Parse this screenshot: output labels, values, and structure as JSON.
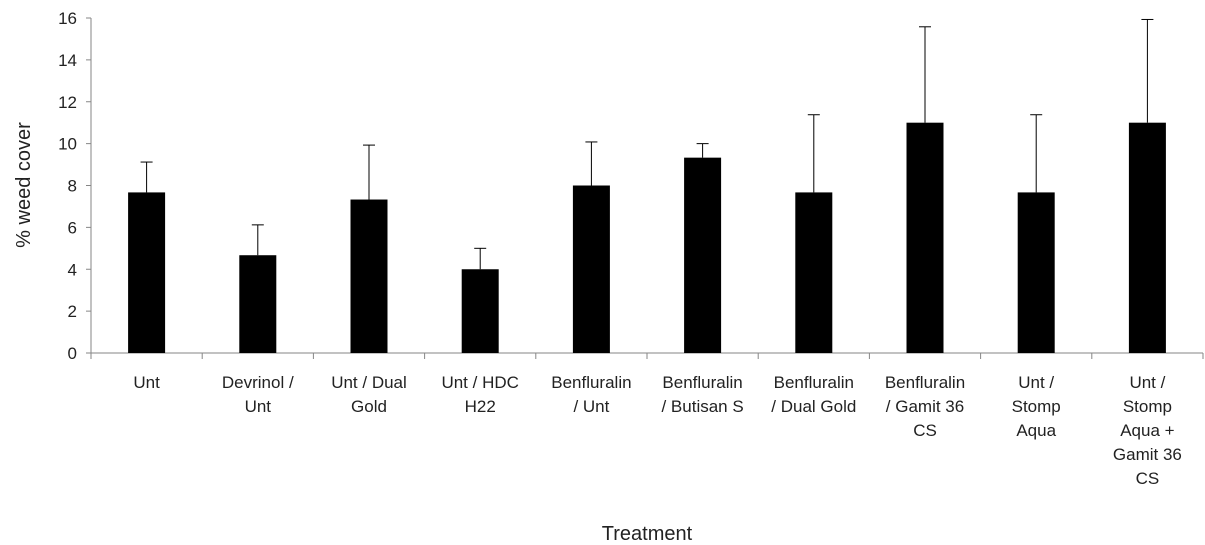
{
  "chart_data": {
    "type": "bar",
    "title": "",
    "xlabel": "Treatment",
    "ylabel": "% weed cover",
    "ylim": [
      0,
      16
    ],
    "yticks": [
      0,
      2,
      4,
      6,
      8,
      10,
      12,
      14,
      16
    ],
    "grid": false,
    "legend": "none",
    "bar_color": "#000000",
    "categories": [
      [
        "Unt"
      ],
      [
        "Devrinol /",
        "Unt"
      ],
      [
        "Unt / Dual",
        "Gold"
      ],
      [
        "Unt / HDC",
        "H22"
      ],
      [
        "Benfluralin",
        "/ Unt"
      ],
      [
        "Benfluralin",
        "/ Butisan S"
      ],
      [
        "Benfluralin",
        "/ Dual Gold"
      ],
      [
        "Benfluralin",
        "/ Gamit 36",
        "CS"
      ],
      [
        "Unt /",
        "Stomp",
        "Aqua"
      ],
      [
        "Unt /",
        "Stomp",
        "Aqua +",
        "Gamit 36",
        "CS"
      ]
    ],
    "values": [
      7.67,
      4.67,
      7.33,
      4.0,
      8.0,
      9.33,
      7.67,
      11.0,
      7.67,
      11.0
    ],
    "error_upper": [
      1.45,
      1.45,
      2.6,
      1.0,
      2.08,
      0.67,
      3.71,
      4.58,
      3.71,
      4.93
    ]
  }
}
